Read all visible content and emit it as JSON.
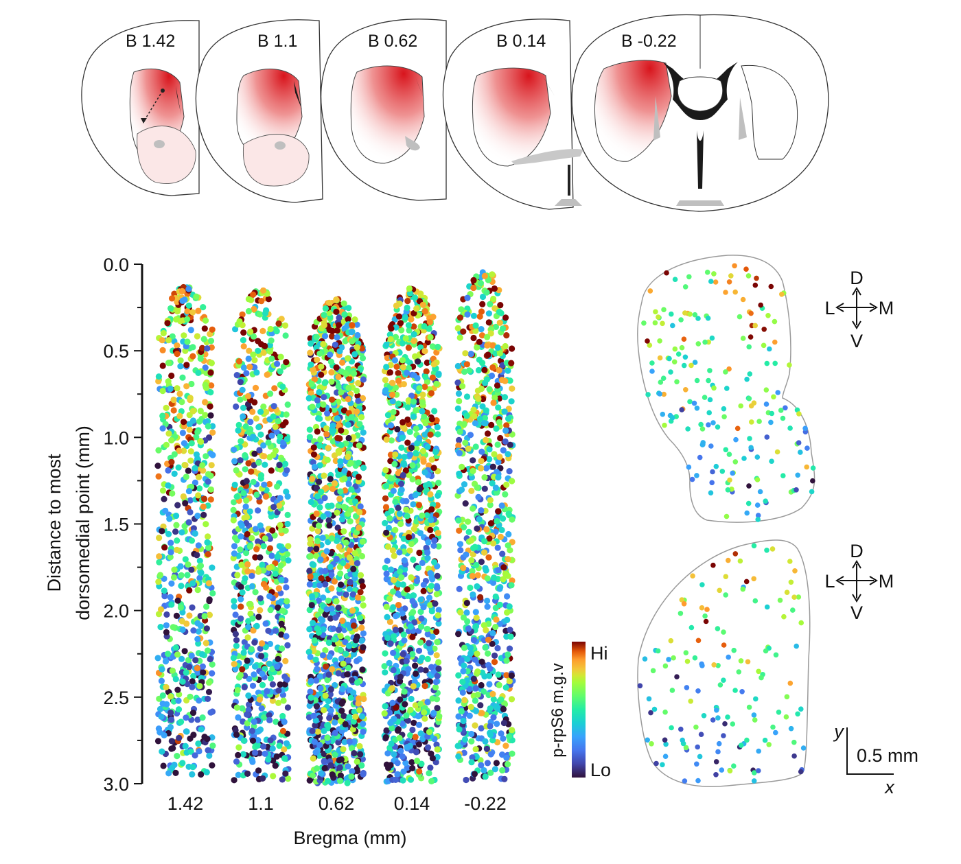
{
  "sections": {
    "title": "",
    "labels": [
      "B 1.42",
      "B 1.1",
      "B 0.62",
      "B 0.14",
      "B -0.22"
    ],
    "colors": {
      "outline": "#333333",
      "gray": "#bfbfbf",
      "dark": "#1a1a1a",
      "red": "#e53935"
    }
  },
  "chart_data": {
    "type": "scatter",
    "title": "",
    "xlabel": "Bregma (mm)",
    "ylabel_line1": "Distance to most",
    "ylabel_line2": "dorsomedial point (mm)",
    "ylim": [
      0,
      3
    ],
    "yinverted": true,
    "yticks": [
      "0.0",
      "0.5",
      "1.0",
      "1.5",
      "2.0",
      "2.5",
      "3.0"
    ],
    "categories": [
      "1.42",
      "1.1",
      "0.62",
      "0.14",
      "-0.22"
    ],
    "series": [
      {
        "category": "1.42",
        "count": 650,
        "ymin": 0.13,
        "ymax": 2.97
      },
      {
        "category": "1.1",
        "count": 760,
        "ymin": 0.15,
        "ymax": 2.98
      },
      {
        "category": "0.62",
        "count": 1300,
        "ymin": 0.2,
        "ymax": 3.0
      },
      {
        "category": "0.14",
        "count": 1050,
        "ymin": 0.14,
        "ymax": 2.99
      },
      {
        "category": "-0.22",
        "count": 800,
        "ymin": 0.04,
        "ymax": 2.98
      }
    ]
  },
  "colorbar": {
    "label": "p-rpS6 m.g.v",
    "hi": "Hi",
    "lo": "Lo"
  },
  "orientation": {
    "d": "D",
    "v": "V",
    "l": "L",
    "m": "M"
  },
  "scalebar": {
    "value": "0.5 mm",
    "x_axis": "x",
    "y_axis": "y"
  },
  "section_maps": {
    "upper_count": 200,
    "lower_count": 150
  }
}
